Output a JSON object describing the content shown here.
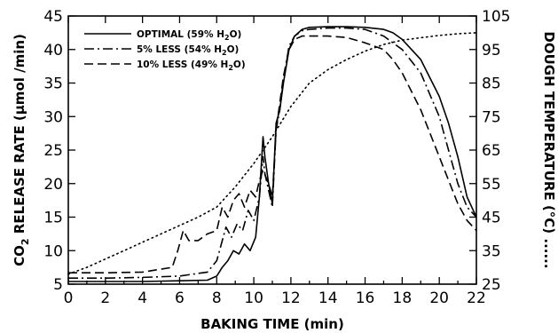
{
  "chart_data": {
    "type": "line",
    "xlabel": "BAKING TIME (min)",
    "ylabel": "CO2 RELEASE RATE (µmol /min)",
    "y2label": "DOUGH TEMPERATURE (°C)",
    "y2label_marker": "......",
    "xlim": [
      0,
      22
    ],
    "ylim": [
      5,
      45
    ],
    "y2lim": [
      25,
      105
    ],
    "x_ticks": [
      0,
      2,
      4,
      6,
      8,
      10,
      12,
      14,
      16,
      18,
      20,
      22
    ],
    "y_ticks": [
      5,
      10,
      15,
      20,
      25,
      30,
      35,
      40,
      45
    ],
    "y2_ticks": [
      25,
      35,
      45,
      55,
      65,
      75,
      85,
      95,
      105
    ],
    "legend_position": "top-left",
    "series": [
      {
        "name": "OPTIMAL (59% H2O)",
        "style": "solid",
        "axis": "left",
        "x": [
          0,
          2,
          4,
          6,
          7.5,
          8.0,
          8.3,
          8.6,
          8.9,
          9.2,
          9.5,
          9.8,
          10.1,
          10.3,
          10.5,
          10.6,
          10.8,
          11.0,
          11.2,
          11.4,
          11.6,
          11.9,
          12.2,
          12.6,
          13,
          14,
          15,
          16,
          17,
          17.5,
          18,
          19,
          20,
          20.5,
          21,
          21.5,
          22
        ],
        "y": [
          5.4,
          5.4,
          5.4,
          5.5,
          5.6,
          6.2,
          7.5,
          8.5,
          10.0,
          9.5,
          11.0,
          10.0,
          12.0,
          18.0,
          27.0,
          24.0,
          20.0,
          17.0,
          29.0,
          31.0,
          35.0,
          40.0,
          42.0,
          43.0,
          43.3,
          43.4,
          43.4,
          43.3,
          43.0,
          42.5,
          41.5,
          38.5,
          33.0,
          29.0,
          24.0,
          18.0,
          15.0
        ]
      },
      {
        "name": "5% LESS (54% H2O)",
        "style": "dash-dot",
        "axis": "left",
        "x": [
          0,
          2,
          4,
          6,
          7.5,
          8.0,
          8.2,
          8.5,
          8.8,
          9.1,
          9.4,
          9.7,
          10.0,
          10.3,
          10.5,
          10.6,
          10.8,
          11.0,
          11.2,
          11.4,
          11.6,
          11.9,
          12.2,
          12.6,
          13,
          14,
          15,
          16,
          17,
          17.5,
          18,
          19,
          20,
          20.5,
          21,
          21.5,
          22
        ],
        "y": [
          5.9,
          5.9,
          6.0,
          6.2,
          6.8,
          8.5,
          10.5,
          13.5,
          12.0,
          14.0,
          13.0,
          16.0,
          14.5,
          18.0,
          24.0,
          21.5,
          19.0,
          16.5,
          28.0,
          31.0,
          35.5,
          40.5,
          42.0,
          42.8,
          43.0,
          43.2,
          43.2,
          43.0,
          42.0,
          41.0,
          40.0,
          36.5,
          30.0,
          25.0,
          20.0,
          16.5,
          15.0
        ]
      },
      {
        "name": "10% LESS (49% H2O)",
        "style": "dashed",
        "axis": "left",
        "x": [
          0,
          2,
          4,
          5.6,
          5.9,
          6.2,
          6.5,
          7.0,
          7.5,
          8.0,
          8.3,
          8.6,
          8.9,
          9.2,
          9.5,
          9.8,
          10.1,
          10.3,
          10.5,
          10.8,
          11.0,
          11.2,
          11.4,
          11.6,
          11.9,
          12.2,
          12.6,
          13,
          14,
          15,
          16,
          17,
          17.5,
          18,
          19,
          20,
          20.5,
          21,
          21.5,
          22
        ],
        "y": [
          6.7,
          6.7,
          6.8,
          7.5,
          10.0,
          13.0,
          11.5,
          11.5,
          12.5,
          13.0,
          16.5,
          15.0,
          17.5,
          18.5,
          16.5,
          19.0,
          18.0,
          20.5,
          22.0,
          20.0,
          18.0,
          28.0,
          32.0,
          36.0,
          40.0,
          41.5,
          42.0,
          42.0,
          42.0,
          41.8,
          41.0,
          40.0,
          38.5,
          36.5,
          31.0,
          24.0,
          20.5,
          17.0,
          14.5,
          13.0
        ]
      },
      {
        "name": "DOUGH TEMPERATURE",
        "style": "dotted",
        "axis": "right",
        "x": [
          0,
          1,
          2,
          3,
          4,
          5,
          6,
          7,
          8,
          9,
          10,
          11,
          12,
          13,
          14,
          15,
          16,
          17,
          18,
          19,
          20,
          21,
          22
        ],
        "y": [
          28,
          30,
          32.5,
          35,
          37.5,
          40,
          42.5,
          45,
          48,
          54,
          61,
          69,
          78,
          85,
          89,
          92,
          94.5,
          96.5,
          97.8,
          98.5,
          99.2,
          99.7,
          100
        ]
      }
    ],
    "legend": [
      {
        "text": "OPTIMAL (59% H",
        "sub": "2",
        "tail": "O)",
        "style": "solid"
      },
      {
        "text": "5% LESS (54% H",
        "sub": "2",
        "tail": "O)",
        "style": "dash-dot"
      },
      {
        "text": "10% LESS (49% H",
        "sub": "2",
        "tail": "O)",
        "style": "dashed"
      }
    ]
  }
}
